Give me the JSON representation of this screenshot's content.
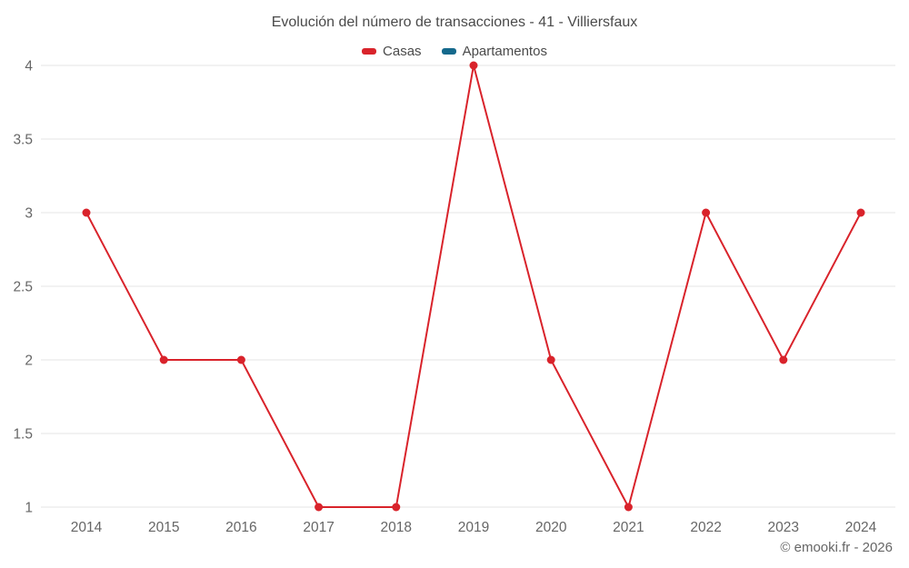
{
  "title": "Evolución del número de transacciones - 41 - Villiersfaux",
  "footer": {
    "text": "© emooki.fr - 2026"
  },
  "colors": {
    "gridline": "#e4e4e4",
    "tick_label": "#666666",
    "title": "#4a4a4a"
  },
  "chart_data": {
    "type": "line",
    "title": "Evolución del número de transacciones - 41 - Villiersfaux",
    "x": [
      2014,
      2015,
      2016,
      2017,
      2018,
      2019,
      2020,
      2021,
      2022,
      2023,
      2024
    ],
    "series": [
      {
        "name": "Casas",
        "color": "#d9232b",
        "values": [
          3,
          2,
          2,
          1,
          1,
          4,
          2,
          1,
          3,
          2,
          3
        ]
      },
      {
        "name": "Apartamentos",
        "color": "#15698c",
        "values": []
      }
    ],
    "xlabel": "",
    "ylabel": "",
    "ylim": [
      1,
      4
    ],
    "yticks": [
      1,
      1.5,
      2,
      2.5,
      3,
      3.5,
      4
    ],
    "grid": true,
    "legend_position": "top",
    "markers": true
  }
}
